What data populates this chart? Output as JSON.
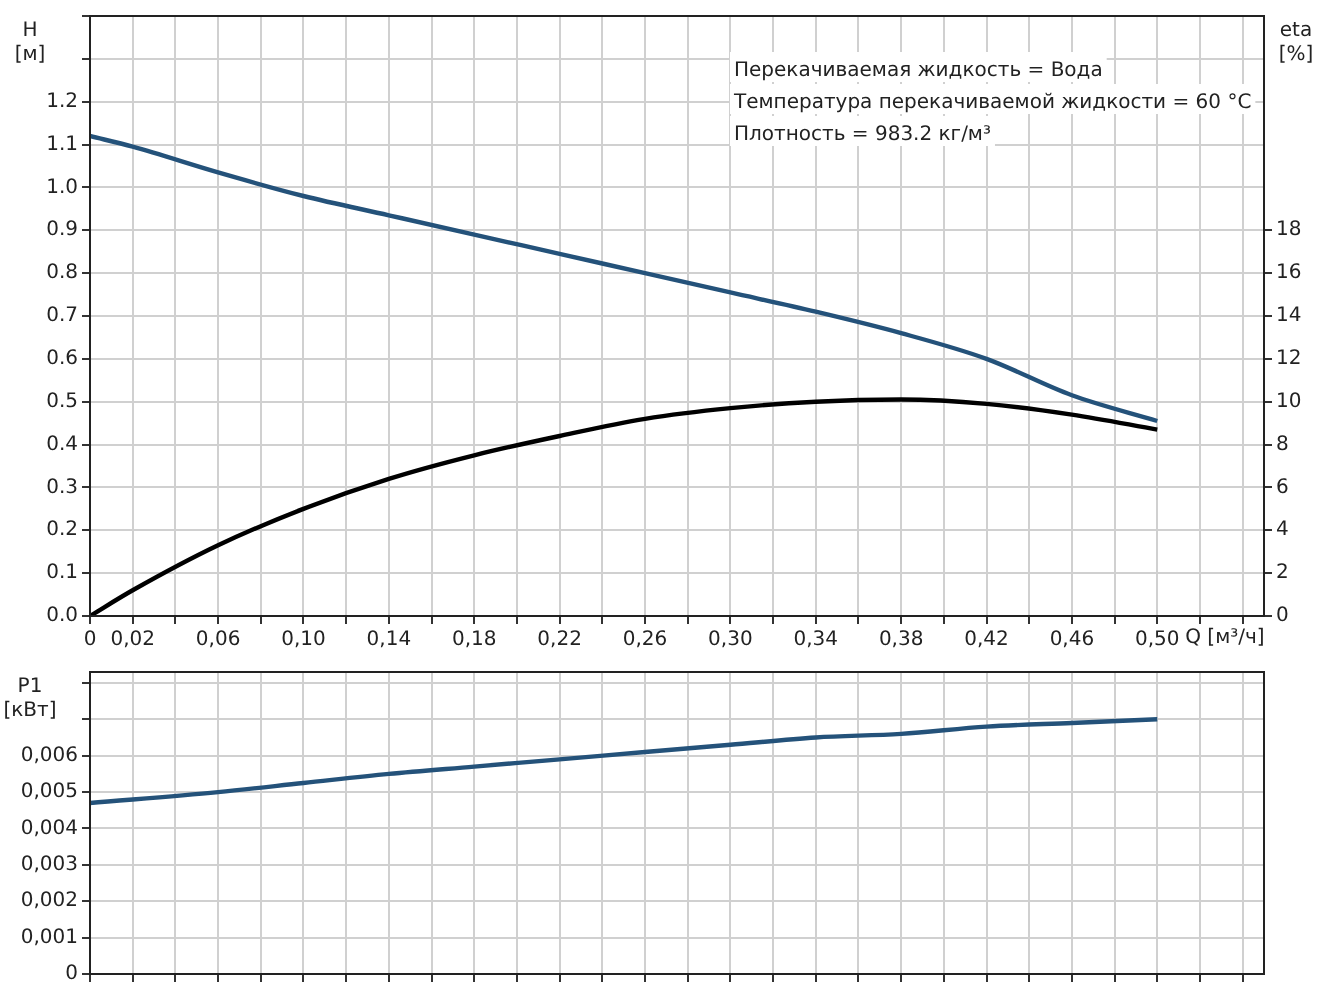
{
  "chart_data": [
    {
      "type": "line",
      "ylabel": "H\n[м]",
      "y2label": "eta\n[%]",
      "xlabel": "Q [м³/ч]",
      "annotations": [
        "Перекачиваемая жидкость = Вода",
        "Температура перекачиваемой жидкости = 60 °C",
        "Плотность = 983.2 кг/м³"
      ],
      "x": [
        0,
        0.02,
        0.06,
        0.1,
        0.14,
        0.18,
        0.22,
        0.26,
        0.3,
        0.34,
        0.38,
        0.42,
        0.46,
        0.5
      ],
      "series": [
        {
          "color": "#24527a",
          "values": [
            1.12,
            1.095,
            1.035,
            0.98,
            0.935,
            0.89,
            0.845,
            0.8,
            0.755,
            0.71,
            0.66,
            0.6,
            0.515,
            0.455
          ]
        },
        {
          "color": "#000000",
          "axis": "y2",
          "values": [
            0,
            1.2,
            3.3,
            5.0,
            6.4,
            7.5,
            8.4,
            9.2,
            9.7,
            10.0,
            10.1,
            9.9,
            9.4,
            8.7
          ]
        }
      ],
      "xlim": [
        0,
        0.55
      ],
      "xticks": [
        0,
        {
          "value": 0.02,
          "label": "0,02"
        },
        {
          "value": 0.04,
          "label": null
        },
        {
          "value": 0.06,
          "label": "0,06"
        },
        {
          "value": 0.08,
          "label": null
        },
        {
          "value": 0.1,
          "label": "0,10"
        },
        {
          "value": 0.12,
          "label": null
        },
        {
          "value": 0.14,
          "label": "0,14"
        },
        {
          "value": 0.16,
          "label": null
        },
        {
          "value": 0.18,
          "label": "0,18"
        },
        {
          "value": 0.2,
          "label": null
        },
        {
          "value": 0.22,
          "label": "0,22"
        },
        {
          "value": 0.24,
          "label": null
        },
        {
          "value": 0.26,
          "label": "0,26"
        },
        {
          "value": 0.28,
          "label": null
        },
        {
          "value": 0.3,
          "label": "0,30"
        },
        {
          "value": 0.32,
          "label": null
        },
        {
          "value": 0.34,
          "label": "0,34"
        },
        {
          "value": 0.36,
          "label": null
        },
        {
          "value": 0.38,
          "label": "0,38"
        },
        {
          "value": 0.4,
          "label": null
        },
        {
          "value": 0.42,
          "label": "0,42"
        },
        {
          "value": 0.44,
          "label": null
        },
        {
          "value": 0.46,
          "label": "0,46"
        },
        {
          "value": 0.48,
          "label": null
        },
        {
          "value": 0.5,
          "label": "0,50"
        },
        {
          "value": 0.52,
          "label": null
        },
        {
          "value": 0.54,
          "label": null
        }
      ],
      "ylim": [
        0,
        1.4
      ],
      "yticks": [
        {
          "value": 0,
          "label": "0.0"
        },
        0.1,
        0.2,
        0.3,
        0.4,
        0.5,
        0.6,
        0.7,
        0.8,
        0.9,
        {
          "value": 1,
          "label": "1.0"
        },
        1.1,
        1.2,
        {
          "value": 1.3,
          "label": null
        },
        {
          "value": 1.4,
          "label": null
        }
      ],
      "y2lim": [
        0,
        28
      ],
      "y2ticks": [
        0,
        2,
        4,
        6,
        8,
        10,
        12,
        14,
        16,
        18
      ],
      "grid": true,
      "legend": false
    },
    {
      "type": "line",
      "ylabel": "P1\n[кВт]",
      "x": [
        0,
        0.06,
        0.1,
        0.14,
        0.18,
        0.22,
        0.26,
        0.3,
        0.34,
        0.38,
        0.42,
        0.46,
        0.5
      ],
      "series": [
        {
          "color": "#24527a",
          "values": [
            0.0047,
            0.005,
            0.00525,
            0.0055,
            0.0057,
            0.0059,
            0.0061,
            0.0063,
            0.0065,
            0.0066,
            0.0068,
            0.0069,
            0.007
          ]
        }
      ],
      "xlim": [
        0,
        0.55
      ],
      "xticks": [
        0,
        0.02,
        0.04,
        0.06,
        0.08,
        0.1,
        0.12,
        0.14,
        0.16,
        0.18,
        0.2,
        0.22,
        0.24,
        0.26,
        0.28,
        0.3,
        0.32,
        0.34,
        0.36,
        0.38,
        0.4,
        0.42,
        0.44,
        0.46,
        0.48,
        0.5,
        0.52,
        0.54
      ],
      "ylim": [
        0,
        0.0083
      ],
      "yticks": [
        0,
        {
          "value": 0.001,
          "label": "0,001"
        },
        {
          "value": 0.002,
          "label": "0,002"
        },
        {
          "value": 0.003,
          "label": "0,003"
        },
        {
          "value": 0.004,
          "label": "0,004"
        },
        {
          "value": 0.005,
          "label": "0,005"
        },
        {
          "value": 0.006,
          "label": "0,006"
        },
        {
          "value": 0.007,
          "label": null
        },
        {
          "value": 0.008,
          "label": null
        }
      ],
      "tick_labels": "y",
      "grid": true,
      "legend": false
    }
  ]
}
